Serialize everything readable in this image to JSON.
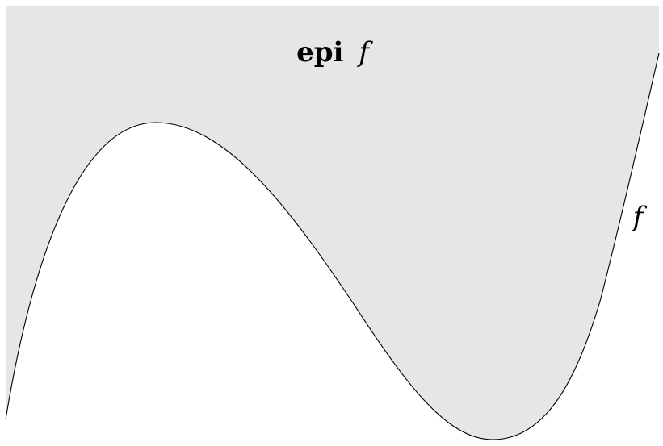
{
  "figure": {
    "region_label_bold": "epi",
    "region_label_italic": "f",
    "curve_label": "f",
    "epigraph_fill_color": "#e6e6e6",
    "curve_color": "#000000",
    "background_color": "#ffffff"
  }
}
